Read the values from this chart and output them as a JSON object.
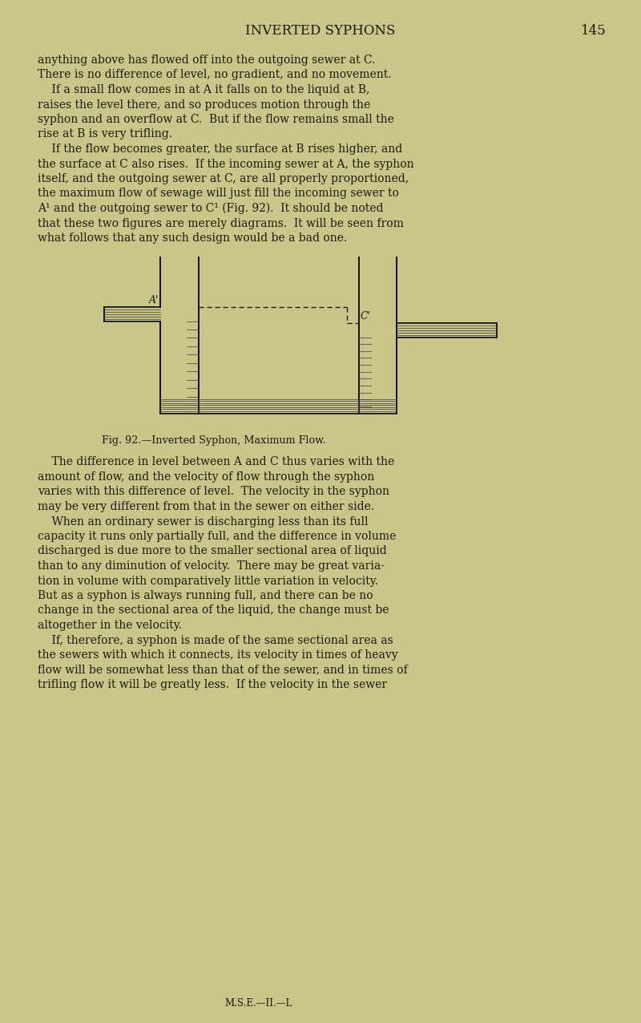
{
  "bg": "#cac68a",
  "tc": "#1a1a0a",
  "title": "INVERTED SYPHONS",
  "page_num": "145",
  "caption": "Fig. 92.—Inverted Syphon, Maximum Flow.",
  "footer": "M.S.E.—II.—L",
  "lines": [
    "anything above has flowed off into the outgoing sewer at C.",
    "There is no difference of level, no gradient, and no movement.",
    "    If a small flow comes in at A it falls on to the liquid at B,",
    "raises the level there, and so produces motion through the",
    "syphon and an overflow at C.  But if the flow remains small the",
    "rise at B is very trifling.",
    "    If the flow becomes greater, the surface at B rises higher, and",
    "the surface at C also rises.  If the incoming sewer at A, the syphon",
    "itself, and the outgoing sewer at C, are all properly proportioned,",
    "the maximum flow of sewage will just fill the incoming sewer to",
    "A¹ and the outgoing sewer to C¹ (Fig. 92).  It should be noted",
    "that these two figures are merely diagrams.  It will be seen from",
    "what follows that any such design would be a bad one."
  ],
  "lines2": [
    "    The difference in level between A and C thus varies with the",
    "amount of flow, and the velocity of flow through the syphon",
    "varies with this difference of level.  The velocity in the syphon",
    "may be very different from that in the sewer on either side.",
    "    When an ordinary sewer is discharging less than its full",
    "capacity it runs only partially full, and the difference in volume",
    "discharged is due more to the smaller sectional area of liquid",
    "than to any diminution of velocity.  There may be great varia-",
    "tion in volume with comparatively little variation in velocity.",
    "But as a syphon is always running full, and there can be no",
    "change in the sectional area of the liquid, the change must be",
    "altogether in the velocity.",
    "    If, therefore, a syphon is made of the same sectional area as",
    "the sewers with which it connects, its velocity in times of heavy",
    "flow will be somewhat less than that of the sewer, and in times of",
    "trifling flow it will be greatly less.  If the velocity in the sewer"
  ]
}
